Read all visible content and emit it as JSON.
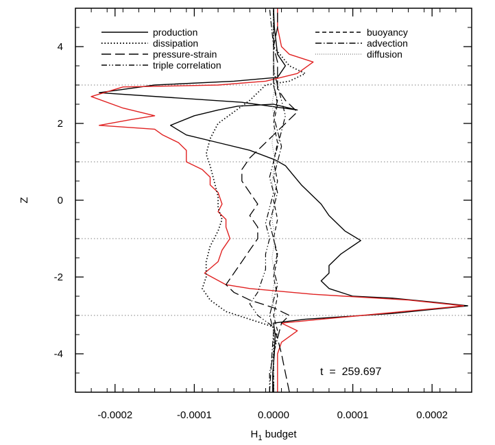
{
  "chart_data": {
    "type": "line",
    "xlabel": "H",
    "xlabel_sub": "1",
    "xlabel_rest": " budget",
    "ylabel": "Z",
    "xlim": [
      -0.00025,
      0.00025
    ],
    "ylim": [
      -5,
      5
    ],
    "xticks": [
      -0.0002,
      -0.0001,
      0.0,
      0.0001,
      0.0002
    ],
    "xtick_labels": [
      "-0.0002",
      "-0.0001",
      "0.0000",
      "0.0001",
      "0.0002"
    ],
    "yticks": [
      -4,
      -2,
      0,
      2,
      4
    ],
    "ytick_labels": [
      "-4",
      "-2",
      "0",
      "2",
      "4"
    ],
    "grid_y": [
      -3,
      -1,
      1,
      3
    ],
    "annotation": "t  =  259.697",
    "legend_left": [
      "production",
      "dissipation",
      "pressure-strain",
      "triple correlation"
    ],
    "legend_right": [
      "buoyancy",
      "advection",
      "diffusion"
    ],
    "series": [
      {
        "name": "production",
        "color": "#000000",
        "style": "solid",
        "points": [
          [
            -1e-06,
            -5
          ],
          [
            -1e-06,
            -4.5
          ],
          [
            1e-06,
            -4.0
          ],
          [
            2e-06,
            -3.5
          ],
          [
            0.0,
            -3.2
          ],
          [
            4e-05,
            -3.1
          ],
          [
            0.00015,
            -2.95
          ],
          [
            0.000245,
            -2.75
          ],
          [
            0.0002,
            -2.65
          ],
          [
            0.00015,
            -2.55
          ],
          [
            0.0001,
            -2.5
          ],
          [
            7e-05,
            -2.3
          ],
          [
            6e-05,
            -2.1
          ],
          [
            7e-05,
            -1.9
          ],
          [
            7e-05,
            -1.7
          ],
          [
            8.5e-05,
            -1.4
          ],
          [
            0.00011,
            -1.05
          ],
          [
            9e-05,
            -0.8
          ],
          [
            7e-05,
            -0.4
          ],
          [
            6e-05,
            -0.1
          ],
          [
            5e-05,
            0.1
          ],
          [
            3.5e-05,
            0.4
          ],
          [
            1.5e-05,
            0.9
          ],
          [
            2e-06,
            1.05
          ],
          [
            -3e-05,
            1.3
          ],
          [
            -7e-05,
            1.5
          ],
          [
            -0.00011,
            1.7
          ],
          [
            -0.00013,
            1.95
          ],
          [
            -0.0001,
            2.2
          ],
          [
            -7e-05,
            2.35
          ],
          [
            -4.5e-05,
            2.45
          ],
          [
            0.0,
            2.5
          ],
          [
            3e-05,
            2.35
          ],
          [
            -4e-05,
            2.55
          ],
          [
            -0.00022,
            2.8
          ],
          [
            -0.00015,
            3.0
          ],
          [
            -5e-05,
            3.1
          ],
          [
            5e-06,
            3.2
          ],
          [
            1.5e-05,
            3.5
          ],
          [
            5e-06,
            3.8
          ],
          [
            1e-06,
            4.5
          ],
          [
            0.0,
            5.0
          ]
        ]
      },
      {
        "name": "red",
        "color": "#e02020",
        "style": "solid",
        "points": [
          [
            5e-06,
            -5
          ],
          [
            5e-06,
            -4.0
          ],
          [
            1e-05,
            -3.7
          ],
          [
            3e-05,
            -3.4
          ],
          [
            1e-05,
            -3.2
          ],
          [
            6e-05,
            -3.1
          ],
          [
            0.00024,
            -2.75
          ],
          [
            0.00017,
            -2.6
          ],
          [
            5e-05,
            -2.45
          ],
          [
            -3e-05,
            -2.3
          ],
          [
            -6e-05,
            -2.2
          ],
          [
            -8.7e-05,
            -1.9
          ],
          [
            -7e-05,
            -1.6
          ],
          [
            -6.5e-05,
            -1.3
          ],
          [
            -5.5e-05,
            -1.0
          ],
          [
            -6e-05,
            -0.7
          ],
          [
            -6e-05,
            -0.5
          ],
          [
            -7e-05,
            -0.3
          ],
          [
            -6.5e-05,
            -0.1
          ],
          [
            -7e-05,
            0.2
          ],
          [
            -8e-05,
            0.4
          ],
          [
            -8e-05,
            0.6
          ],
          [
            -9e-05,
            0.8
          ],
          [
            -0.00011,
            1.0
          ],
          [
            -0.00011,
            1.3
          ],
          [
            -0.00012,
            1.5
          ],
          [
            -0.00014,
            1.7
          ],
          [
            -0.00015,
            1.85
          ],
          [
            -0.00022,
            1.95
          ],
          [
            -0.00018,
            2.1
          ],
          [
            -0.00015,
            2.2
          ],
          [
            -0.00017,
            2.3
          ],
          [
            -0.00019,
            2.4
          ],
          [
            -0.00023,
            2.7
          ],
          [
            -0.00019,
            2.95
          ],
          [
            -7e-05,
            3.0
          ],
          [
            -1e-05,
            3.1
          ],
          [
            3e-05,
            3.3
          ],
          [
            5e-05,
            3.6
          ],
          [
            2e-05,
            3.8
          ],
          [
            1e-05,
            4.0
          ],
          [
            5e-06,
            4.5
          ],
          [
            5e-06,
            5.0
          ]
        ]
      },
      {
        "name": "dissipation",
        "color": "#000000",
        "style": "dotted",
        "points": [
          [
            0.0,
            -5
          ],
          [
            0.0,
            -4.5
          ],
          [
            0.0,
            -3.3
          ],
          [
            -3e-05,
            -3.1
          ],
          [
            -6e-05,
            -2.9
          ],
          [
            -8e-05,
            -2.6
          ],
          [
            -9e-05,
            -2.3
          ],
          [
            -8.5e-05,
            -2.0
          ],
          [
            -8.5e-05,
            -1.6
          ],
          [
            -8e-05,
            -1.2
          ],
          [
            -7e-05,
            -0.8
          ],
          [
            -6.5e-05,
            -0.5
          ],
          [
            -7e-05,
            -0.2
          ],
          [
            -7e-05,
            0.1
          ],
          [
            -7.5e-05,
            0.5
          ],
          [
            -8e-05,
            0.9
          ],
          [
            -8.5e-05,
            1.2
          ],
          [
            -8e-05,
            1.6
          ],
          [
            -7e-05,
            2.0
          ],
          [
            -5e-05,
            2.3
          ],
          [
            -3e-05,
            2.6
          ],
          [
            -1e-05,
            3.0
          ],
          [
            2e-05,
            3.1
          ],
          [
            4e-05,
            3.3
          ],
          [
            2e-05,
            3.5
          ],
          [
            0.0,
            4.0
          ],
          [
            0.0,
            5.0
          ]
        ]
      },
      {
        "name": "pressure-strain",
        "color": "#000000",
        "style": "longdash",
        "points": [
          [
            2e-05,
            -5
          ],
          [
            1.5e-05,
            -4.5
          ],
          [
            1e-05,
            -4.0
          ],
          [
            5e-06,
            -3.6
          ],
          [
            1e-05,
            -3.2
          ],
          [
            2e-05,
            -3.0
          ],
          [
            0.0,
            -2.8
          ],
          [
            -3e-05,
            -2.6
          ],
          [
            -5e-05,
            -2.4
          ],
          [
            -6e-05,
            -2.2
          ],
          [
            -5e-05,
            -1.9
          ],
          [
            -4e-05,
            -1.6
          ],
          [
            -3e-05,
            -1.3
          ],
          [
            -2e-05,
            -1.0
          ],
          [
            -2e-05,
            -0.7
          ],
          [
            -3e-05,
            -0.4
          ],
          [
            -2e-05,
            -0.1
          ],
          [
            -3e-05,
            0.2
          ],
          [
            -4e-05,
            0.5
          ],
          [
            -4e-05,
            0.8
          ],
          [
            -3e-05,
            1.1
          ],
          [
            -1.5e-05,
            1.4
          ],
          [
            0.0,
            1.7
          ],
          [
            1.5e-05,
            2.0
          ],
          [
            3e-05,
            2.3
          ],
          [
            1.5e-05,
            2.6
          ],
          [
            5e-06,
            2.9
          ],
          [
            5e-06,
            3.2
          ],
          [
            5e-06,
            3.6
          ],
          [
            0.0,
            4.0
          ],
          [
            5e-06,
            4.5
          ],
          [
            5e-06,
            5.0
          ]
        ]
      },
      {
        "name": "triple correlation",
        "color": "#000000",
        "style": "dashdotdot",
        "points": [
          [
            -5e-06,
            -5
          ],
          [
            -5e-06,
            -4.5
          ],
          [
            0.0,
            -4.0
          ],
          [
            5e-06,
            -3.6
          ],
          [
            0.0,
            -3.3
          ],
          [
            -2e-05,
            -3.0
          ],
          [
            -3e-05,
            -2.7
          ],
          [
            -2e-05,
            -2.4
          ],
          [
            -1.5e-05,
            -2.1
          ],
          [
            -1e-05,
            -1.8
          ],
          [
            -1e-05,
            -1.4
          ],
          [
            -5e-06,
            -1.0
          ],
          [
            -1e-05,
            -0.6
          ],
          [
            -5e-06,
            -0.2
          ],
          [
            0.0,
            0.2
          ],
          [
            -5e-06,
            0.6
          ],
          [
            0.0,
            1.0
          ],
          [
            5e-06,
            1.4
          ],
          [
            1e-05,
            1.8
          ],
          [
            1.5e-05,
            2.2
          ],
          [
            1e-05,
            2.6
          ],
          [
            5e-06,
            3.0
          ],
          [
            0.0,
            3.4
          ],
          [
            0.0,
            4.0
          ],
          [
            0.0,
            5.0
          ]
        ]
      },
      {
        "name": "buoyancy",
        "color": "#000000",
        "style": "shortdash",
        "points": [
          [
            0.0,
            -5
          ],
          [
            0.0,
            -4.0
          ],
          [
            5e-06,
            -3.4
          ],
          [
            0.0,
            -3.0
          ],
          [
            5e-06,
            -2.5
          ],
          [
            0.0,
            -2.0
          ],
          [
            5e-06,
            -1.5
          ],
          [
            0.0,
            -1.0
          ],
          [
            5e-06,
            -0.5
          ],
          [
            0.0,
            0.0
          ],
          [
            5e-06,
            0.5
          ],
          [
            0.0,
            1.0
          ],
          [
            5e-06,
            1.5
          ],
          [
            0.0,
            2.0
          ],
          [
            5e-06,
            2.5
          ],
          [
            0.0,
            3.0
          ],
          [
            0.0,
            4.0
          ],
          [
            0.0,
            5.0
          ]
        ]
      },
      {
        "name": "advection",
        "color": "#000000",
        "style": "dashdot",
        "points": [
          [
            -5e-06,
            -5
          ],
          [
            -2e-06,
            -4.0
          ],
          [
            0.0,
            -3.4
          ],
          [
            -5e-06,
            -3.0
          ],
          [
            0.0,
            -2.6
          ],
          [
            5e-06,
            -2.2
          ],
          [
            0.0,
            -1.8
          ],
          [
            5e-06,
            -1.4
          ],
          [
            0.0,
            -1.0
          ],
          [
            -5e-06,
            -0.6
          ],
          [
            0.0,
            -0.2
          ],
          [
            5e-06,
            0.2
          ],
          [
            0.0,
            0.6
          ],
          [
            5e-06,
            1.0
          ],
          [
            1e-05,
            1.4
          ],
          [
            5e-06,
            1.8
          ],
          [
            0.0,
            2.2
          ],
          [
            5e-06,
            2.6
          ],
          [
            0.0,
            3.0
          ],
          [
            0.0,
            4.0
          ],
          [
            -5e-06,
            5.0
          ]
        ]
      },
      {
        "name": "diffusion",
        "color": "#777777",
        "style": "thindot",
        "points": [
          [
            0.0,
            -5
          ],
          [
            0.0,
            -3.5
          ],
          [
            2e-06,
            -3.0
          ],
          [
            -2e-06,
            -2.5
          ],
          [
            2e-06,
            -2.0
          ],
          [
            -2e-06,
            -1.5
          ],
          [
            2e-06,
            -1.0
          ],
          [
            -2e-06,
            -0.5
          ],
          [
            2e-06,
            0.0
          ],
          [
            -2e-06,
            0.5
          ],
          [
            2e-06,
            1.0
          ],
          [
            -2e-06,
            1.5
          ],
          [
            2e-06,
            2.0
          ],
          [
            -2e-06,
            2.5
          ],
          [
            2e-06,
            3.0
          ],
          [
            0.0,
            4.0
          ],
          [
            0.0,
            5.0
          ]
        ]
      }
    ]
  }
}
